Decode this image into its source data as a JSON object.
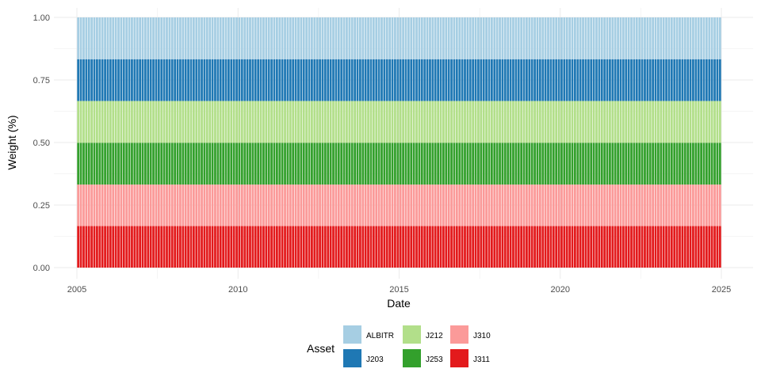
{
  "chart_data": {
    "type": "bar",
    "stacked": true,
    "xlabel": "Date",
    "ylabel": "Weight (%)",
    "x_range": [
      2005.0,
      2025.0
    ],
    "ylim": [
      0,
      1
    ],
    "x_ticks": [
      "2005",
      "2010",
      "2015",
      "2020",
      "2025"
    ],
    "y_ticks": [
      "0.00",
      "0.25",
      "0.50",
      "0.75",
      "1.00"
    ],
    "period": "monthly",
    "grid": true,
    "legend": {
      "title": "Asset",
      "position": "bottom",
      "entries": [
        "ALBITR",
        "J203",
        "J212",
        "J253",
        "J310",
        "J311"
      ]
    },
    "stack_order_bottom_to_top": [
      "J311",
      "J310",
      "J253",
      "J212",
      "J203",
      "ALBITR"
    ],
    "series": [
      {
        "name": "ALBITR",
        "color": "#a6cee3",
        "approx_weight": 0.167
      },
      {
        "name": "J203",
        "color": "#1f78b4",
        "approx_weight": 0.167
      },
      {
        "name": "J212",
        "color": "#b2df8a",
        "approx_weight": 0.167
      },
      {
        "name": "J253",
        "color": "#33a02c",
        "approx_weight": 0.167
      },
      {
        "name": "J310",
        "color": "#fb9a99",
        "approx_weight": 0.166
      },
      {
        "name": "J311",
        "color": "#e31a1c",
        "approx_weight": 0.166
      }
    ]
  }
}
